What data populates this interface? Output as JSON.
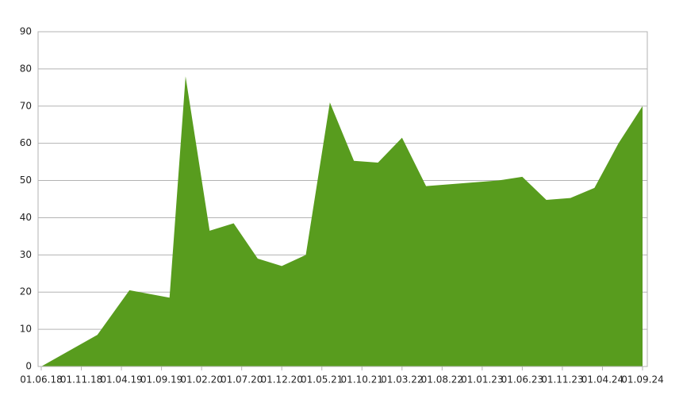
{
  "chart_data": {
    "type": "area",
    "x": [
      "01.06.18",
      "01.01.19",
      "01.05.19",
      "01.10.19",
      "01.12.19",
      "01.03.20",
      "01.06.20",
      "01.09.20",
      "01.12.20",
      "01.03.21",
      "01.06.21",
      "01.09.21",
      "01.12.21",
      "01.03.22",
      "01.06.22",
      "01.09.22",
      "01.12.22",
      "01.03.23",
      "01.06.23",
      "01.09.23",
      "01.12.23",
      "01.03.24",
      "01.06.24",
      "01.09.24"
    ],
    "series": [
      {
        "color": "#589c1e",
        "values": [
          0,
          8.5,
          20.5,
          18.5,
          78,
          36.5,
          38.5,
          29,
          27,
          30,
          71,
          55.3,
          54.8,
          61.5,
          48.5,
          49,
          49.5,
          50,
          51,
          44.8,
          45.3,
          48,
          60,
          70
        ]
      }
    ],
    "xlim": [
      "01.06.18",
      "01.09.24"
    ],
    "xticks": [
      "01.06.18",
      "01.11.18",
      "01.04.19",
      "01.09.19",
      "01.02.20",
      "01.07.20",
      "01.12.20",
      "01.05.21",
      "01.10.21",
      "01.03.22",
      "01.08.22",
      "01.01.23",
      "01.06.23",
      "01.11.23",
      "01.04.24",
      "01.09.24"
    ],
    "ylim": [
      0,
      90
    ],
    "yticks": [
      0,
      10,
      20,
      30,
      40,
      50,
      60,
      70,
      80,
      90
    ],
    "grid": true
  }
}
